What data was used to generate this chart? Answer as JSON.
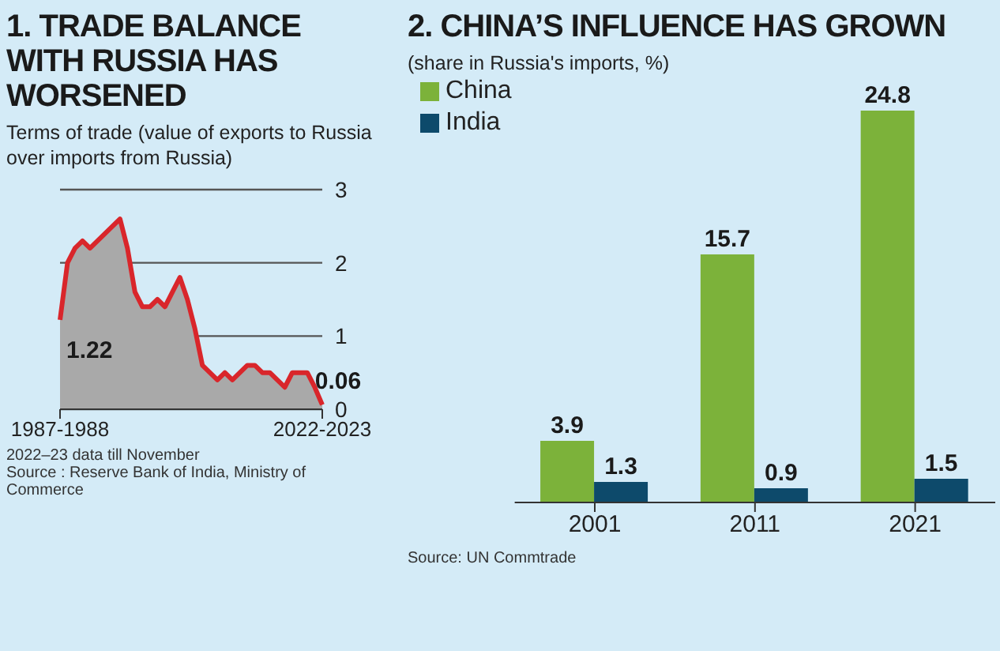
{
  "chart_data": [
    {
      "type": "area",
      "title": "1. TRADE BALANCE WITH RUSSIA HAS WORSENED",
      "subtitle": "Terms of trade (value of exports to Russia over imports from Russia)",
      "categories": [
        "1987-1988",
        null,
        null,
        null,
        null,
        null,
        null,
        null,
        null,
        null,
        null,
        null,
        null,
        null,
        null,
        null,
        null,
        null,
        null,
        null,
        null,
        null,
        null,
        null,
        null,
        null,
        null,
        null,
        null,
        null,
        null,
        null,
        null,
        null,
        null,
        "2022-2023"
      ],
      "series": [
        {
          "color": "#d9262b",
          "values": [
            1.22,
            2.0,
            2.2,
            2.3,
            2.2,
            2.3,
            2.4,
            2.5,
            2.6,
            2.2,
            1.6,
            1.4,
            1.4,
            1.5,
            1.4,
            1.6,
            1.8,
            1.5,
            1.1,
            0.6,
            0.5,
            0.4,
            0.5,
            0.4,
            0.5,
            0.6,
            0.6,
            0.5,
            0.5,
            0.4,
            0.3,
            0.5,
            0.5,
            0.5,
            0.3,
            0.06
          ],
          "value_labels": [
            "1.22",
            null,
            null,
            null,
            null,
            null,
            null,
            null,
            null,
            null,
            null,
            null,
            null,
            null,
            null,
            null,
            null,
            null,
            null,
            null,
            null,
            null,
            null,
            null,
            null,
            null,
            null,
            null,
            null,
            null,
            null,
            null,
            null,
            null,
            null,
            "0.06"
          ]
        }
      ],
      "ylim": [
        0,
        3
      ],
      "yticks": [
        0,
        1,
        2,
        3
      ],
      "grid": "y",
      "marker": "none",
      "annotations": [
        "2022–23 data till November",
        "Source : Reserve Bank of India, Ministry of Commerce"
      ]
    },
    {
      "type": "bar",
      "title": "2. CHINA’S INFLUENCE HAS GROWN",
      "subtitle": "(share in Russia's imports, %)",
      "categories": [
        "2001",
        "2011",
        "2021"
      ],
      "series": [
        {
          "name": "China",
          "color": "#7cb23a",
          "values": [
            3.9,
            15.7,
            24.8
          ]
        },
        {
          "name": "India",
          "color": "#0d4a6b",
          "values": [
            1.3,
            0.9,
            1.5
          ]
        }
      ],
      "data_labels": true,
      "legend": "top left",
      "tick_labels": "x",
      "annotations": [
        "Source: UN Commtrade"
      ]
    }
  ]
}
